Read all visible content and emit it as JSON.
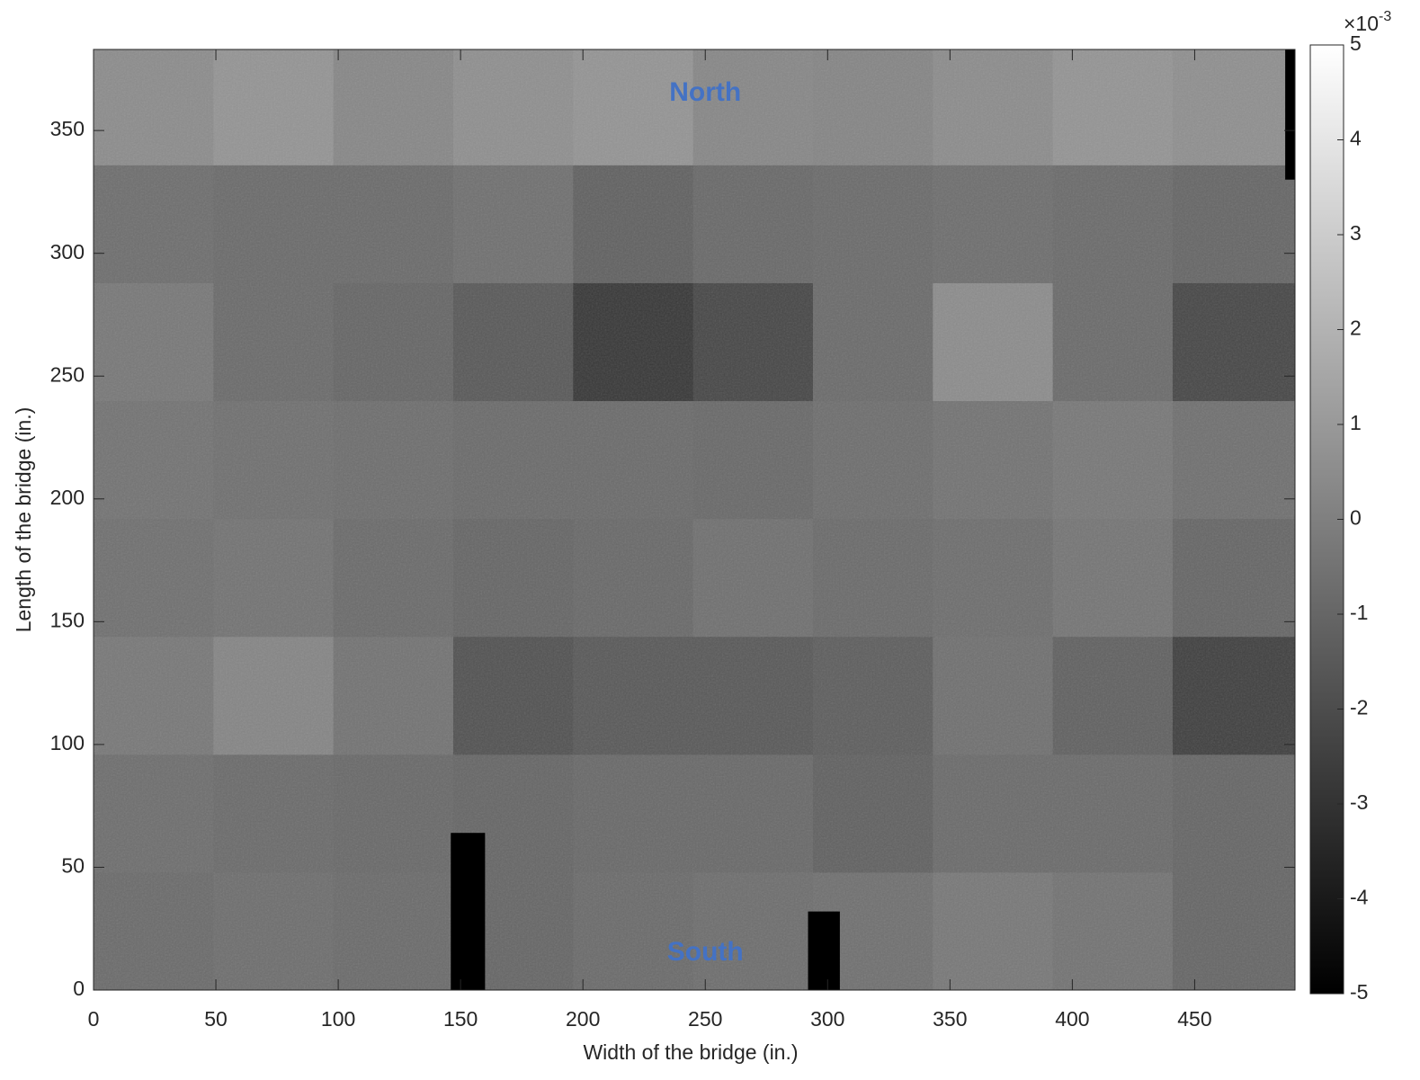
{
  "chart_data": {
    "type": "heatmap",
    "xlabel": "Width of the bridge (in.)",
    "ylabel": "Length of the bridge (in.)",
    "xlim": [
      0,
      491
    ],
    "ylim": [
      0,
      383
    ],
    "xticks": [
      0,
      50,
      100,
      150,
      200,
      250,
      300,
      350,
      400,
      450
    ],
    "yticks": [
      0,
      50,
      100,
      150,
      200,
      250,
      300,
      350
    ],
    "xbins": [
      0,
      49,
      98,
      147,
      196,
      245,
      294,
      343,
      392,
      441,
      491
    ],
    "ybins": [
      0,
      48,
      96,
      144,
      192,
      240,
      288,
      336,
      383
    ],
    "values": [
      [
        -0.8,
        -0.7,
        -0.8,
        -1,
        -0.8,
        -0.7,
        -0.6,
        -0.3,
        -0.5,
        -1
      ],
      [
        -0.7,
        -0.8,
        -0.9,
        -1,
        -0.9,
        -0.9,
        -1.2,
        -0.8,
        -0.8,
        -1
      ],
      [
        -0.3,
        0.2,
        -0.5,
        -1.8,
        -1.5,
        -1.5,
        -1.3,
        -0.6,
        -1.2,
        -2.5
      ],
      [
        -0.6,
        -0.5,
        -0.8,
        -1,
        -0.9,
        -0.6,
        -0.8,
        -0.7,
        -0.4,
        -1
      ],
      [
        -0.5,
        -0.6,
        -0.7,
        -0.8,
        -0.8,
        -0.9,
        -0.7,
        -0.5,
        -0.3,
        -0.6
      ],
      [
        -0.3,
        -0.8,
        -1,
        -1.5,
        -2.8,
        -2.2,
        -0.8,
        0.5,
        -0.8,
        -2.2
      ],
      [
        -0.7,
        -0.8,
        -0.8,
        -0.6,
        -1.2,
        -0.9,
        -0.8,
        -0.7,
        -0.8,
        -1
      ],
      [
        0.5,
        0.8,
        0.3,
        0.6,
        0.8,
        0.3,
        0.2,
        0.5,
        0.8,
        0.6
      ]
    ],
    "patches": [
      {
        "xrange": [
          146,
          160
        ],
        "yrange": [
          0,
          64
        ],
        "value": -5
      },
      {
        "xrange": [
          292,
          305
        ],
        "yrange": [
          0,
          32
        ],
        "value": -5
      },
      {
        "xrange": [
          487,
          491
        ],
        "yrange": [
          330,
          383
        ],
        "value": -5
      }
    ],
    "colormap": "gray",
    "colorbar": {
      "lim": [
        -5,
        5
      ],
      "ticks": [
        -5,
        -4,
        -3,
        -2,
        -1,
        0,
        1,
        2,
        3,
        4,
        5
      ],
      "multiplier": "×10",
      "exponent": "-3"
    },
    "annotations": [
      {
        "text": "North",
        "x": 250,
        "y": 365,
        "color": "#4472c4"
      },
      {
        "text": "South",
        "x": 250,
        "y": 15,
        "color": "#4472c4"
      }
    ]
  }
}
